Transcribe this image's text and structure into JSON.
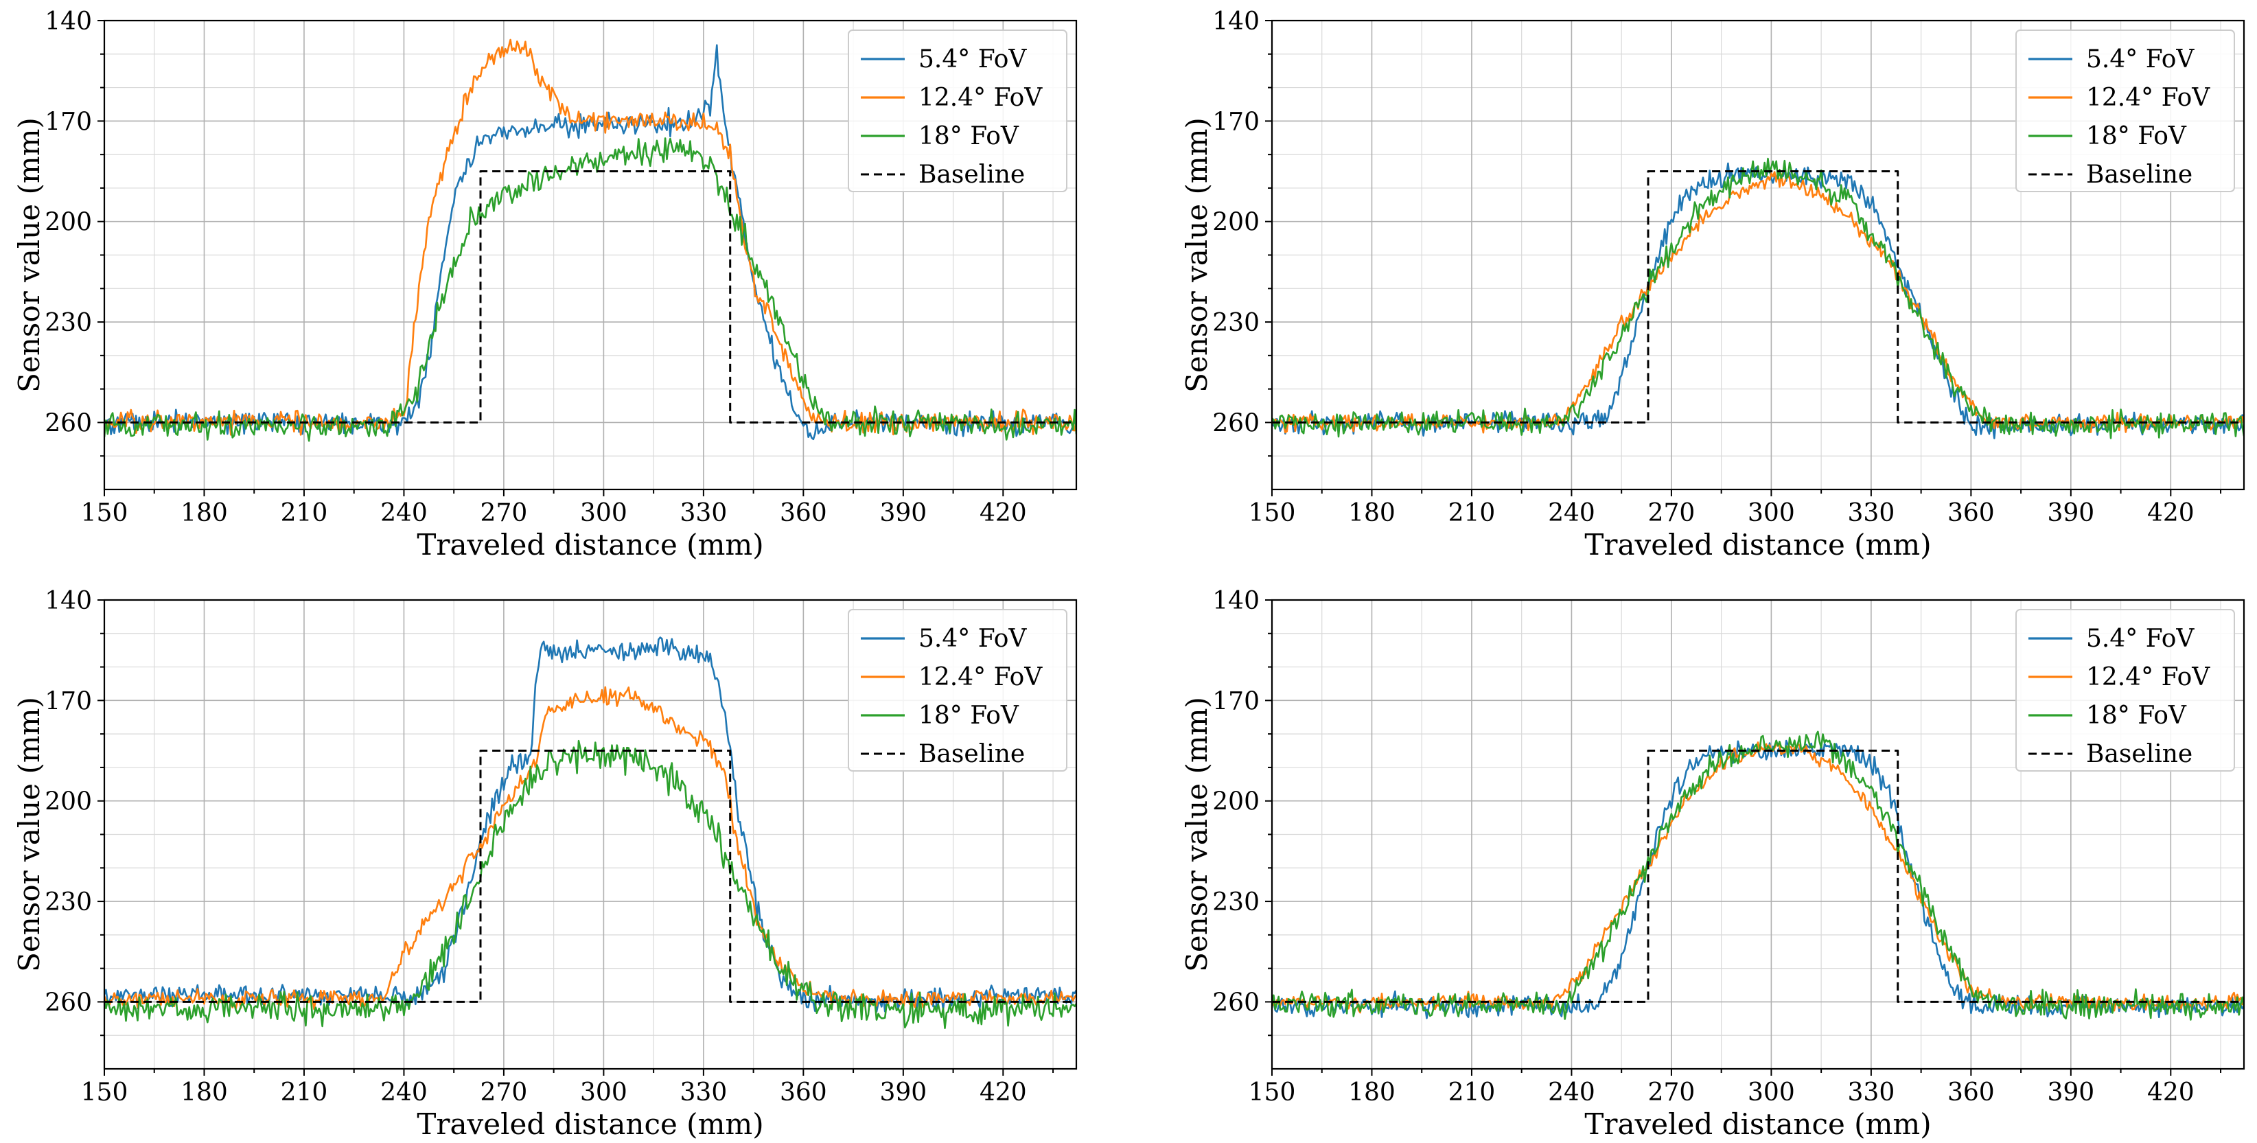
{
  "colors": {
    "series": [
      "#1f77b4",
      "#ff7f0e",
      "#2ca02c",
      "#000000"
    ]
  },
  "chart_data": [
    {
      "type": "line",
      "xlabel": "Traveled distance (mm)",
      "ylabel": "Sensor value (mm)",
      "xlim": [
        150,
        442
      ],
      "ylim": [
        280,
        140
      ],
      "y_inverted": true,
      "xticks": [
        150,
        180,
        210,
        240,
        270,
        300,
        330,
        360,
        390,
        420
      ],
      "xtick_labels": [
        "150",
        "180",
        "210",
        "240",
        "270",
        "300",
        "330",
        "360",
        "390",
        "420"
      ],
      "yticks": [
        140,
        170,
        200,
        230,
        260
      ],
      "ytick_labels": [
        "140",
        "170",
        "200",
        "230",
        "260"
      ],
      "grid": true,
      "legend": "top-right",
      "series": [
        {
          "name": "5.4° FoV",
          "style": "solid",
          "noise": 1.6,
          "x": [
            150,
            240,
            244,
            248,
            252,
            256,
            262,
            270,
            285,
            300,
            315,
            325,
            332,
            334,
            336,
            340,
            345,
            352,
            358,
            362,
            366,
            372,
            442
          ],
          "values": [
            260,
            260,
            256,
            238,
            210,
            190,
            178,
            173,
            172,
            171,
            171,
            170,
            166,
            150,
            168,
            190,
            218,
            242,
            258,
            264,
            261,
            260,
            260
          ]
        },
        {
          "name": "12.4° FoV",
          "style": "solid",
          "noise": 1.5,
          "x": [
            150,
            236,
            240,
            244,
            248,
            252,
            258,
            264,
            270,
            276,
            282,
            290,
            300,
            310,
            320,
            330,
            334,
            338,
            342,
            346,
            350,
            356,
            362,
            366,
            442
          ],
          "values": [
            260,
            260,
            258,
            225,
            195,
            183,
            165,
            153,
            149,
            147,
            158,
            170,
            170,
            169,
            170,
            171,
            172,
            180,
            205,
            222,
            228,
            245,
            258,
            260,
            260
          ]
        },
        {
          "name": "18° FoV",
          "style": "solid",
          "noise": 2.0,
          "x": [
            150,
            236,
            244,
            250,
            260,
            270,
            290,
            310,
            325,
            332,
            340,
            348,
            356,
            362,
            368,
            442
          ],
          "values": [
            261,
            261,
            250,
            228,
            200,
            192,
            184,
            180,
            178,
            183,
            200,
            218,
            238,
            252,
            260,
            261
          ]
        },
        {
          "name": "Baseline",
          "style": "dashed",
          "noise": 0,
          "x": [
            150,
            263,
            263,
            338,
            338,
            442
          ],
          "values": [
            260,
            260,
            185,
            185,
            260,
            260
          ]
        }
      ]
    },
    {
      "type": "line",
      "xlabel": "Traveled distance (mm)",
      "ylabel": "Sensor value (mm)",
      "xlim": [
        150,
        442
      ],
      "ylim": [
        280,
        140
      ],
      "y_inverted": true,
      "xticks": [
        150,
        180,
        210,
        240,
        270,
        300,
        330,
        360,
        390,
        420
      ],
      "xtick_labels": [
        "150",
        "180",
        "210",
        "240",
        "270",
        "300",
        "330",
        "360",
        "390",
        "420"
      ],
      "yticks": [
        140,
        170,
        200,
        230,
        260
      ],
      "ytick_labels": [
        "140",
        "170",
        "200",
        "230",
        "260"
      ],
      "grid": true,
      "legend": "top-right",
      "series": [
        {
          "name": "5.4° FoV",
          "style": "solid",
          "noise": 1.6,
          "x": [
            150,
            250,
            256,
            262,
            268,
            276,
            290,
            310,
            325,
            333,
            338,
            344,
            350,
            356,
            360,
            364,
            442
          ],
          "values": [
            260,
            260,
            244,
            222,
            204,
            190,
            186,
            186,
            189,
            200,
            214,
            226,
            240,
            254,
            260,
            261,
            260
          ]
        },
        {
          "name": "12.4° FoV",
          "style": "solid",
          "noise": 1.2,
          "x": [
            150,
            236,
            244,
            254,
            264,
            276,
            290,
            302,
            315,
            325,
            335,
            345,
            355,
            362,
            370,
            442
          ],
          "values": [
            260,
            260,
            250,
            232,
            218,
            203,
            191,
            187,
            192,
            200,
            212,
            228,
            248,
            258,
            260,
            260
          ]
        },
        {
          "name": "18° FoV",
          "style": "solid",
          "noise": 1.8,
          "x": [
            150,
            238,
            246,
            256,
            266,
            278,
            290,
            300,
            312,
            325,
            335,
            345,
            355,
            362,
            370,
            442
          ],
          "values": [
            260,
            260,
            249,
            232,
            214,
            197,
            187,
            184,
            187,
            196,
            210,
            230,
            250,
            258,
            261,
            260
          ]
        },
        {
          "name": "Baseline",
          "style": "dashed",
          "noise": 0,
          "x": [
            150,
            263,
            263,
            338,
            338,
            442
          ],
          "values": [
            260,
            260,
            185,
            185,
            260,
            260
          ]
        }
      ]
    },
    {
      "type": "line",
      "xlabel": "Traveled distance (mm)",
      "ylabel": "Sensor value (mm)",
      "xlim": [
        150,
        442
      ],
      "ylim": [
        280,
        140
      ],
      "y_inverted": true,
      "xticks": [
        150,
        180,
        210,
        240,
        270,
        300,
        330,
        360,
        390,
        420
      ],
      "xtick_labels": [
        "150",
        "180",
        "210",
        "240",
        "270",
        "300",
        "330",
        "360",
        "390",
        "420"
      ],
      "yticks": [
        140,
        170,
        200,
        230,
        260
      ],
      "ytick_labels": [
        "140",
        "170",
        "200",
        "230",
        "260"
      ],
      "grid": true,
      "legend": "top-right",
      "series": [
        {
          "name": "5.4° FoV",
          "style": "solid",
          "noise": 1.6,
          "x": [
            150,
            246,
            252,
            258,
            264,
            272,
            278,
            280,
            282,
            300,
            320,
            332,
            336,
            340,
            346,
            352,
            358,
            364,
            442
          ],
          "values": [
            258,
            258,
            250,
            232,
            208,
            190,
            186,
            160,
            155,
            155,
            155,
            157,
            172,
            200,
            232,
            250,
            258,
            260,
            258
          ]
        },
        {
          "name": "12.4° FoV",
          "style": "solid",
          "noise": 1.3,
          "x": [
            150,
            234,
            240,
            250,
            262,
            274,
            280,
            282,
            290,
            305,
            315,
            322,
            330,
            336,
            340,
            346,
            352,
            360,
            368,
            442
          ],
          "values": [
            259,
            259,
            245,
            232,
            215,
            196,
            188,
            175,
            170,
            168,
            172,
            178,
            182,
            190,
            212,
            235,
            248,
            256,
            259,
            259
          ]
        },
        {
          "name": "18° FoV",
          "style": "solid",
          "noise": 2.1,
          "x": [
            150,
            240,
            248,
            258,
            268,
            278,
            290,
            300,
            312,
            322,
            332,
            342,
            352,
            362,
            372,
            385,
            442
          ],
          "values": [
            262,
            262,
            252,
            232,
            210,
            194,
            186,
            186,
            188,
            194,
            207,
            228,
            248,
            258,
            262,
            263,
            262
          ]
        },
        {
          "name": "Baseline",
          "style": "dashed",
          "noise": 0,
          "x": [
            150,
            263,
            263,
            338,
            338,
            442
          ],
          "values": [
            260,
            260,
            185,
            185,
            260,
            260
          ]
        }
      ]
    },
    {
      "type": "line",
      "xlabel": "Traveled distance (mm)",
      "ylabel": "Sensor value (mm)",
      "xlim": [
        150,
        442
      ],
      "ylim": [
        280,
        140
      ],
      "y_inverted": true,
      "xticks": [
        150,
        180,
        210,
        240,
        270,
        300,
        330,
        360,
        390,
        420
      ],
      "xtick_labels": [
        "150",
        "180",
        "210",
        "240",
        "270",
        "300",
        "330",
        "360",
        "390",
        "420"
      ],
      "yticks": [
        140,
        170,
        200,
        230,
        260
      ],
      "ytick_labels": [
        "140",
        "170",
        "200",
        "230",
        "260"
      ],
      "grid": true,
      "legend": "top-right",
      "series": [
        {
          "name": "5.4° FoV",
          "style": "solid",
          "noise": 1.5,
          "x": [
            150,
            248,
            254,
            260,
            266,
            272,
            280,
            300,
            320,
            330,
            336,
            342,
            348,
            354,
            360,
            442
          ],
          "values": [
            261,
            261,
            250,
            230,
            210,
            195,
            186,
            185,
            185,
            188,
            198,
            220,
            240,
            256,
            261,
            261
          ]
        },
        {
          "name": "12.4° FoV",
          "style": "solid",
          "noise": 1.1,
          "x": [
            150,
            236,
            244,
            254,
            264,
            274,
            286,
            298,
            310,
            320,
            330,
            340,
            350,
            360,
            368,
            442
          ],
          "values": [
            260,
            260,
            250,
            233,
            218,
            200,
            188,
            184,
            185,
            190,
            203,
            218,
            240,
            256,
            260,
            260
          ]
        },
        {
          "name": "18° FoV",
          "style": "solid",
          "noise": 1.8,
          "x": [
            150,
            238,
            246,
            256,
            266,
            276,
            288,
            300,
            315,
            325,
            335,
            345,
            355,
            362,
            370,
            442
          ],
          "values": [
            261,
            261,
            250,
            232,
            212,
            196,
            186,
            184,
            183,
            190,
            206,
            226,
            248,
            258,
            261,
            261
          ]
        },
        {
          "name": "Baseline",
          "style": "dashed",
          "noise": 0,
          "x": [
            150,
            263,
            263,
            338,
            338,
            442
          ],
          "values": [
            260,
            260,
            185,
            185,
            260,
            260
          ]
        }
      ]
    }
  ]
}
